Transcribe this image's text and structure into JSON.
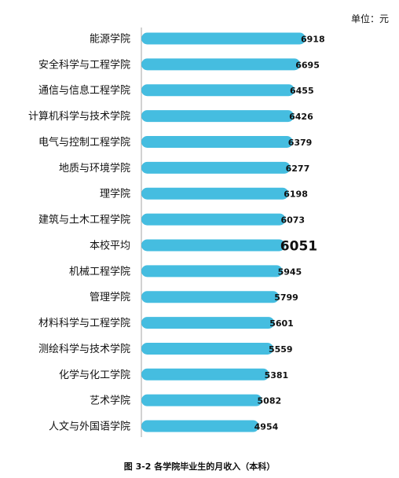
{
  "unit_label": "单位：元",
  "caption": "图 3-2 各学院毕业生的月收入（本科）",
  "colors": {
    "bar": "#45bde0",
    "axis": "#a6a6a6",
    "text": "#111111"
  },
  "chart_data": {
    "type": "bar",
    "orientation": "horizontal",
    "categories": [
      "能源学院",
      "安全科学与工程学院",
      "通信与信息工程学院",
      "计算机科学与技术学院",
      "电气与控制工程学院",
      "地质与环境学院",
      "理学院",
      "建筑与土木工程学院",
      "本校平均",
      "机械工程学院",
      "管理学院",
      "材料科学与工程学院",
      "测绘科学与技术学院",
      "化学与化工学院",
      "艺术学院",
      "人文与外国语学院"
    ],
    "values": [
      6918,
      6695,
      6455,
      6426,
      6379,
      6277,
      6198,
      6073,
      6051,
      5945,
      5799,
      5601,
      5559,
      5381,
      5082,
      4954
    ],
    "highlight_category": "本校平均",
    "xlim": [
      0,
      6918
    ],
    "grid": false,
    "legend": "none"
  }
}
